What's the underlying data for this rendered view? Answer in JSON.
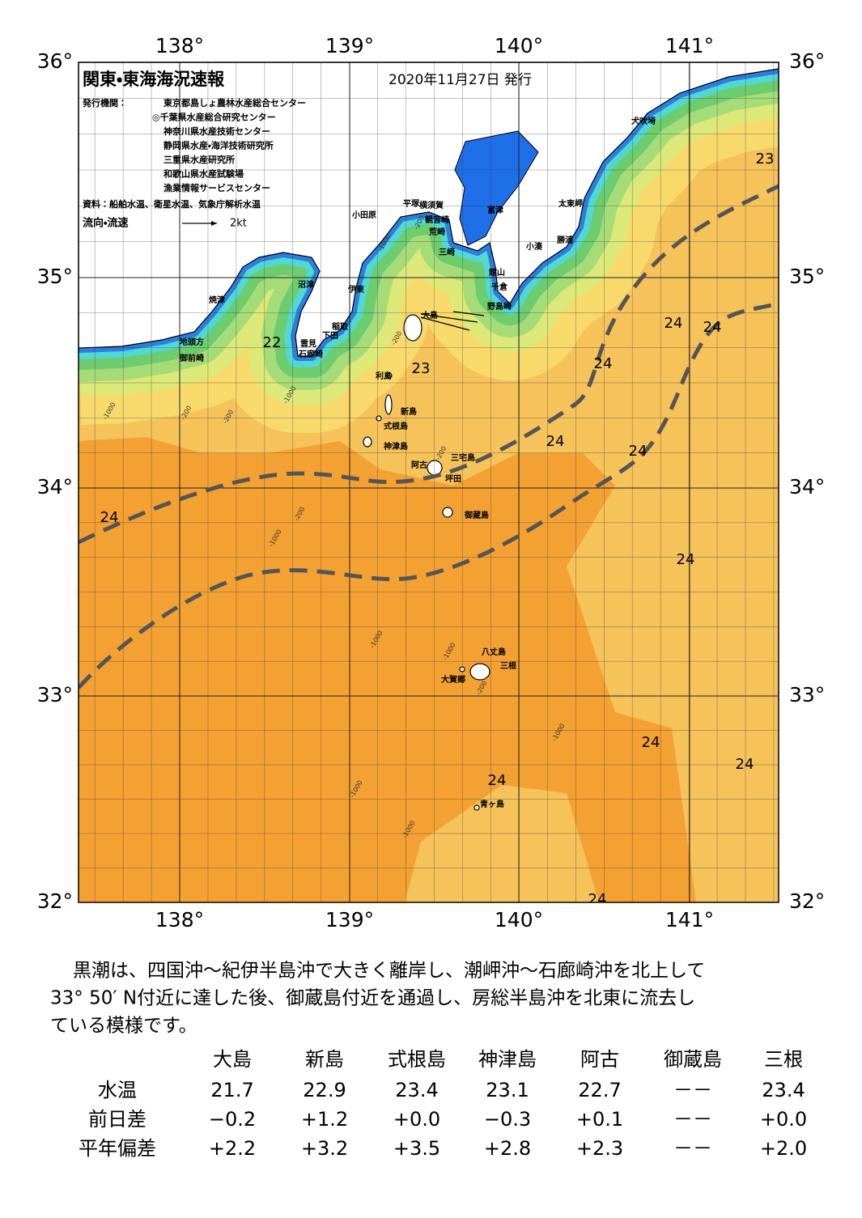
{
  "header": {
    "title": "関東・東海海況速報",
    "date": "2020年11月27日 発行",
    "issuer_label": "発行機関：",
    "issuers": [
      "東京都島しょ農林水産総合センター",
      "◎千葉県水産総合研究センター",
      "神奈川県水産技術センター",
      "静岡県水産・海洋技術研究所",
      "三重県水産研究所",
      "和歌山県水産試験場",
      "漁業情報サービスセンター"
    ],
    "source": "資料：船舶水温、衛星水温、気象庁解析水温",
    "legend_label": "流向・流速",
    "legend_speed": "2kt"
  },
  "map": {
    "lon_labels": [
      "138°",
      "139°",
      "140°",
      "141°"
    ],
    "lat_labels": [
      "36°",
      "35°",
      "34°",
      "33°",
      "32°"
    ],
    "places": [
      "犬吠埼",
      "太東岬",
      "勝浦",
      "小湊",
      "富津",
      "横須賀",
      "平塚",
      "観音崎",
      "荒崎",
      "三崎",
      "小田原",
      "館山",
      "千倉",
      "野島崎",
      "沼津",
      "伊東",
      "焼津",
      "稲取",
      "下田",
      "雲見",
      "石廊崎",
      "地頭方",
      "御前崎",
      "大島",
      "利島",
      "新島",
      "式根島",
      "神津島",
      "三宅島",
      "阿古",
      "坪田",
      "御蔵島",
      "八丈島",
      "三根",
      "大賀郷",
      "青ヶ島"
    ],
    "temperature_labels": [
      "23",
      "24",
      "24",
      "22",
      "23",
      "24",
      "24",
      "24",
      "24",
      "24",
      "24",
      "24",
      "24",
      "24"
    ],
    "depth_labels": [
      "-200",
      "-1000",
      "-200",
      "-1000",
      "-200",
      "-1000",
      "-200",
      "-200",
      "-1000",
      "-1000",
      "-1000",
      "-1000",
      "-1000",
      "-200",
      "-1000",
      "-200"
    ]
  },
  "description": [
    "黒潮は、四国沖～紀伊半島沖で大きく離岸し、潮岬沖～石廊崎沖を北上して",
    "33° 50′ N付近に達した後、御蔵島付近を通過し、房総半島沖を北東に流去し",
    "ている模様です。"
  ],
  "table": {
    "columns": [
      "大島",
      "新島",
      "式根島",
      "神津島",
      "阿古",
      "御蔵島",
      "三根"
    ],
    "rows": [
      {
        "label": "水温",
        "values": [
          "21.7",
          "22.9",
          "23.4",
          "23.1",
          "22.7",
          "－－",
          "23.4"
        ]
      },
      {
        "label": "前日差",
        "values": [
          "−0.2",
          "+1.2",
          "+0.0",
          "−0.3",
          "+0.1",
          "－－",
          "+0.0"
        ]
      },
      {
        "label": "平年偏差",
        "values": [
          "+2.2",
          "+3.2",
          "+3.5",
          "+2.8",
          "+2.3",
          "－－",
          "+2.0"
        ]
      }
    ]
  }
}
